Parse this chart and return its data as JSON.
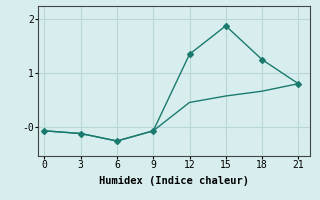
{
  "line1_x": [
    0,
    3,
    6,
    9,
    12,
    15,
    18,
    21
  ],
  "line1_y": [
    -0.08,
    -0.13,
    -0.27,
    -0.08,
    1.35,
    1.88,
    1.25,
    0.8
  ],
  "line2_x": [
    0,
    3,
    6,
    9,
    12,
    15,
    18,
    21
  ],
  "line2_y": [
    -0.08,
    -0.13,
    -0.27,
    -0.08,
    0.45,
    0.57,
    0.66,
    0.8
  ],
  "line_color": "#1a7a6e",
  "bg_color": "#d8eeee",
  "grid_color": "#b8d8d8",
  "xlabel": "Humidex (Indice chaleur)",
  "xlim": [
    -0.5,
    22
  ],
  "ylim": [
    -0.55,
    2.25
  ],
  "xticks": [
    0,
    3,
    6,
    9,
    12,
    15,
    18,
    21
  ],
  "yticks": [
    0.0,
    1.0,
    2.0
  ],
  "ytick_labels": [
    "-0",
    "1",
    "2"
  ],
  "marker": "D",
  "marker_size": 3,
  "line_width": 1.0
}
